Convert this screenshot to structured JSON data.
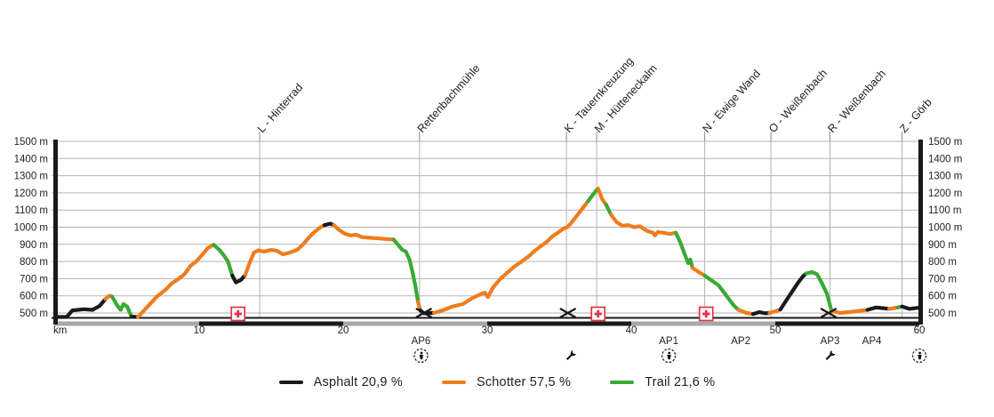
{
  "chart_data": {
    "type": "line",
    "title": "",
    "xlabel": "km",
    "ylabel": "m",
    "x_range": [
      0,
      60
    ],
    "x_ticks": [
      10,
      20,
      30,
      40,
      50,
      60
    ],
    "y_range": [
      500,
      1500
    ],
    "y_ticks": [
      500,
      600,
      700,
      800,
      900,
      1000,
      1100,
      1200,
      1300,
      1400,
      1500
    ],
    "y_unit": "m",
    "grid": true,
    "legend_position": "bottom-center",
    "legend": [
      {
        "key": "a",
        "label": "Asphalt 20,9 %",
        "color": "#1a1a1a"
      },
      {
        "key": "s",
        "label": "Schotter 57,5 %",
        "color": "#ee7d1d"
      },
      {
        "key": "t",
        "label": "Trail 21,6 %",
        "color": "#3aaa35"
      }
    ],
    "surface_names": {
      "a": "Asphalt",
      "s": "Schotter",
      "t": "Trail"
    },
    "waypoints": [
      {
        "label": "L - Hinterrad",
        "km": 14.2
      },
      {
        "label": "Rettenbachmühle",
        "km": 25.3
      },
      {
        "label": "K - Tauernkreuzung",
        "km": 35.5
      },
      {
        "label": "M - Hütteneckalm",
        "km": 37.6
      },
      {
        "label": "N - Ewige Wand",
        "km": 45.1
      },
      {
        "label": "O - Weißenbach",
        "km": 49.7
      },
      {
        "label": "R - Weißenbach",
        "km": 53.8
      },
      {
        "label": "Z - Görb",
        "km": 58.8
      }
    ],
    "first_aid_km": [
      12.7,
      37.7,
      45.2
    ],
    "crossing_km": [
      25.6,
      35.6,
      53.7
    ],
    "checkpoints": [
      {
        "label": "AP6",
        "km": 25.4,
        "icon": "refreshment"
      },
      {
        "label": "",
        "km": 35.8,
        "icon": "wrench"
      },
      {
        "label": "AP1",
        "km": 42.6,
        "icon": "refreshment"
      },
      {
        "label": "AP2",
        "km": 47.6,
        "icon": ""
      },
      {
        "label": "AP3",
        "km": 53.8,
        "icon": "wrench"
      },
      {
        "label": "AP4",
        "km": 56.7,
        "icon": ""
      },
      {
        "label": "",
        "km": 60,
        "icon": "finish"
      }
    ],
    "profile": [
      [
        0,
        470,
        "a"
      ],
      [
        0.8,
        468,
        "a"
      ],
      [
        1.2,
        515,
        "a"
      ],
      [
        2.0,
        522,
        "a"
      ],
      [
        2.6,
        518,
        "a"
      ],
      [
        3.1,
        542,
        "a"
      ],
      [
        3.5,
        582,
        "s"
      ],
      [
        3.75,
        600,
        "s"
      ],
      [
        3.95,
        596,
        "t"
      ],
      [
        4.3,
        545,
        "t"
      ],
      [
        4.55,
        518,
        "t"
      ],
      [
        4.75,
        552,
        "t"
      ],
      [
        5.0,
        538,
        "t"
      ],
      [
        5.3,
        478,
        "a"
      ],
      [
        5.75,
        472,
        "s"
      ],
      [
        6.4,
        535,
        "s"
      ],
      [
        7.1,
        598,
        "s"
      ],
      [
        7.7,
        638,
        "s"
      ],
      [
        8.1,
        672,
        "s"
      ],
      [
        8.6,
        700,
        "s"
      ],
      [
        9.0,
        728,
        "s"
      ],
      [
        9.4,
        775,
        "s"
      ],
      [
        9.8,
        800,
        "s"
      ],
      [
        10.2,
        838,
        "s"
      ],
      [
        10.6,
        878,
        "s"
      ],
      [
        11.0,
        898,
        "t"
      ],
      [
        11.4,
        868,
        "t"
      ],
      [
        11.7,
        838,
        "t"
      ],
      [
        12.0,
        800,
        "t"
      ],
      [
        12.3,
        718,
        "a"
      ],
      [
        12.55,
        678,
        "a"
      ],
      [
        12.9,
        692,
        "a"
      ],
      [
        13.2,
        722,
        "s"
      ],
      [
        13.5,
        790,
        "s"
      ],
      [
        13.8,
        852,
        "s"
      ],
      [
        14.1,
        865,
        "s"
      ],
      [
        14.5,
        858,
        "s"
      ],
      [
        15.0,
        868,
        "s"
      ],
      [
        15.4,
        862,
        "s"
      ],
      [
        15.8,
        842,
        "s"
      ],
      [
        16.3,
        852,
        "s"
      ],
      [
        16.8,
        868,
        "s"
      ],
      [
        17.2,
        898,
        "s"
      ],
      [
        17.6,
        938,
        "s"
      ],
      [
        18.0,
        972,
        "s"
      ],
      [
        18.4,
        998,
        "s"
      ],
      [
        18.7,
        1012,
        "a"
      ],
      [
        19.1,
        1020,
        "a"
      ],
      [
        19.35,
        1012,
        "s"
      ],
      [
        19.7,
        985,
        "s"
      ],
      [
        20.1,
        962,
        "s"
      ],
      [
        20.5,
        952,
        "s"
      ],
      [
        20.9,
        956,
        "s"
      ],
      [
        21.3,
        942,
        "s"
      ],
      [
        21.9,
        938,
        "s"
      ],
      [
        22.5,
        934,
        "s"
      ],
      [
        23.1,
        930,
        "s"
      ],
      [
        23.5,
        928,
        "t"
      ],
      [
        23.8,
        898,
        "t"
      ],
      [
        24.1,
        868,
        "t"
      ],
      [
        24.35,
        858,
        "t"
      ],
      [
        24.6,
        812,
        "t"
      ],
      [
        24.8,
        742,
        "t"
      ],
      [
        25.0,
        662,
        "t"
      ],
      [
        25.2,
        565,
        "s"
      ],
      [
        25.35,
        515,
        "a"
      ],
      [
        25.6,
        498,
        "a"
      ],
      [
        26.3,
        500,
        "s"
      ],
      [
        27.0,
        518,
        "s"
      ],
      [
        27.6,
        538,
        "s"
      ],
      [
        28.3,
        552,
        "s"
      ],
      [
        29.0,
        588,
        "s"
      ],
      [
        29.6,
        612,
        "s"
      ],
      [
        29.85,
        618,
        "s"
      ],
      [
        30.05,
        592,
        "s"
      ],
      [
        30.4,
        648,
        "s"
      ],
      [
        30.9,
        698,
        "s"
      ],
      [
        31.4,
        735,
        "s"
      ],
      [
        31.9,
        772,
        "s"
      ],
      [
        32.4,
        800,
        "s"
      ],
      [
        32.9,
        832,
        "s"
      ],
      [
        33.3,
        862,
        "s"
      ],
      [
        33.7,
        888,
        "s"
      ],
      [
        34.1,
        912,
        "s"
      ],
      [
        34.5,
        945,
        "s"
      ],
      [
        34.9,
        968,
        "s"
      ],
      [
        35.3,
        992,
        "s"
      ],
      [
        35.6,
        1002,
        "s"
      ],
      [
        35.9,
        1032,
        "s"
      ],
      [
        36.3,
        1075,
        "s"
      ],
      [
        36.7,
        1118,
        "s"
      ],
      [
        37.0,
        1152,
        "t"
      ],
      [
        37.3,
        1185,
        "t"
      ],
      [
        37.55,
        1212,
        "t"
      ],
      [
        37.7,
        1225,
        "s"
      ],
      [
        38.0,
        1160,
        "s"
      ],
      [
        38.25,
        1132,
        "t"
      ],
      [
        38.6,
        1072,
        "s"
      ],
      [
        39.0,
        1028,
        "s"
      ],
      [
        39.4,
        1008,
        "s"
      ],
      [
        39.8,
        1012,
        "s"
      ],
      [
        40.2,
        1000,
        "s"
      ],
      [
        40.6,
        1005,
        "s"
      ],
      [
        41.1,
        978,
        "s"
      ],
      [
        41.5,
        968,
        "s"
      ],
      [
        41.65,
        952,
        "s"
      ],
      [
        41.85,
        972,
        "s"
      ],
      [
        42.2,
        968,
        "s"
      ],
      [
        42.7,
        960,
        "s"
      ],
      [
        43.1,
        968,
        "t"
      ],
      [
        43.4,
        912,
        "t"
      ],
      [
        43.7,
        845,
        "t"
      ],
      [
        43.95,
        790,
        "t"
      ],
      [
        44.1,
        812,
        "t"
      ],
      [
        44.25,
        762,
        "s"
      ],
      [
        44.75,
        735,
        "s"
      ],
      [
        45.1,
        718,
        "t"
      ],
      [
        45.6,
        688,
        "t"
      ],
      [
        46.05,
        662,
        "t"
      ],
      [
        46.5,
        613,
        "t"
      ],
      [
        46.8,
        578,
        "t"
      ],
      [
        47.1,
        545,
        "t"
      ],
      [
        47.45,
        518,
        "s"
      ],
      [
        48.0,
        500,
        "s"
      ],
      [
        48.45,
        494,
        "a"
      ],
      [
        48.9,
        505,
        "a"
      ],
      [
        49.3,
        498,
        "a"
      ],
      [
        49.6,
        500,
        "s"
      ],
      [
        50.0,
        510,
        "s"
      ],
      [
        50.35,
        520,
        "a"
      ],
      [
        50.8,
        578,
        "a"
      ],
      [
        51.2,
        628,
        "a"
      ],
      [
        51.6,
        678,
        "a"
      ],
      [
        51.9,
        712,
        "a"
      ],
      [
        52.15,
        730,
        "t"
      ],
      [
        52.55,
        738,
        "t"
      ],
      [
        52.9,
        726,
        "t"
      ],
      [
        53.25,
        672,
        "t"
      ],
      [
        53.6,
        610,
        "t"
      ],
      [
        53.9,
        512,
        "s"
      ],
      [
        54.5,
        500,
        "s"
      ],
      [
        55.4,
        508,
        "s"
      ],
      [
        56.4,
        518,
        "a"
      ],
      [
        57.0,
        532,
        "a"
      ],
      [
        57.5,
        528,
        "a"
      ],
      [
        57.9,
        524,
        "s"
      ],
      [
        58.5,
        532,
        "t"
      ],
      [
        58.8,
        538,
        "a"
      ],
      [
        59.3,
        524,
        "a"
      ],
      [
        59.9,
        530,
        "a"
      ],
      [
        60,
        528,
        "a"
      ]
    ]
  },
  "colors": {
    "grid": "#b3b3b3",
    "axis": "#1a1a1a",
    "first_aid": "#e23344",
    "text": "#222222",
    "km_bar_light": "#a8a8a8",
    "km_bar_dark": "#1b1b1b",
    "background": "#ffffff"
  }
}
